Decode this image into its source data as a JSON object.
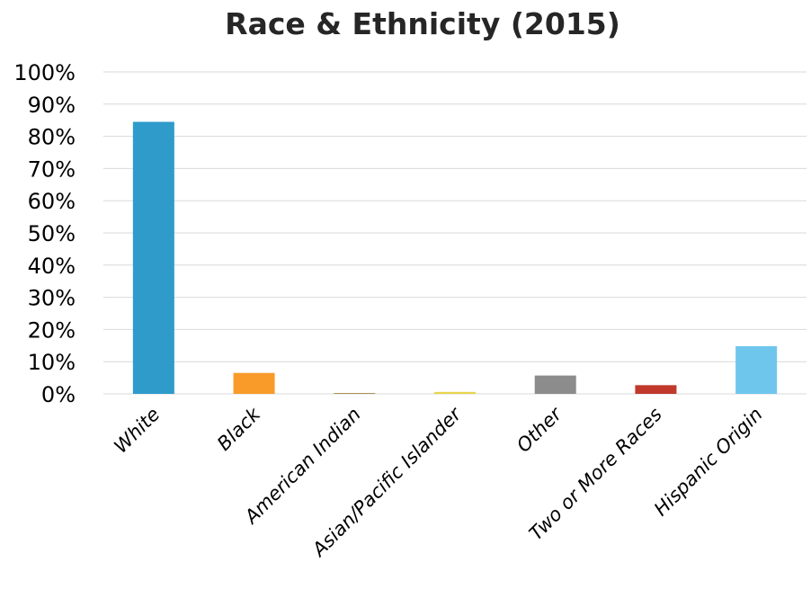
{
  "chart_data": {
    "type": "bar",
    "title": "Race & Ethnicity (2015)",
    "xlabel": "",
    "ylabel": "",
    "ylim": [
      0,
      100
    ],
    "yticks": [
      "0%",
      "10%",
      "20%",
      "30%",
      "40%",
      "50%",
      "60%",
      "70%",
      "80%",
      "90%",
      "100%"
    ],
    "categories": [
      "White",
      "Black",
      "American Indian",
      "Asian/Pacific Islander",
      "Other",
      "Two or More Races",
      "Hispanic Origin"
    ],
    "values": [
      84.5,
      6.5,
      0.2,
      0.6,
      5.7,
      2.7,
      14.8
    ],
    "value_unit": "%",
    "colors": [
      "#2E9BCB",
      "#F99B29",
      "#8B6914",
      "#E8D44D",
      "#8C8C8C",
      "#C0392B",
      "#6EC6EC"
    ],
    "grid": true,
    "legend": "none"
  }
}
